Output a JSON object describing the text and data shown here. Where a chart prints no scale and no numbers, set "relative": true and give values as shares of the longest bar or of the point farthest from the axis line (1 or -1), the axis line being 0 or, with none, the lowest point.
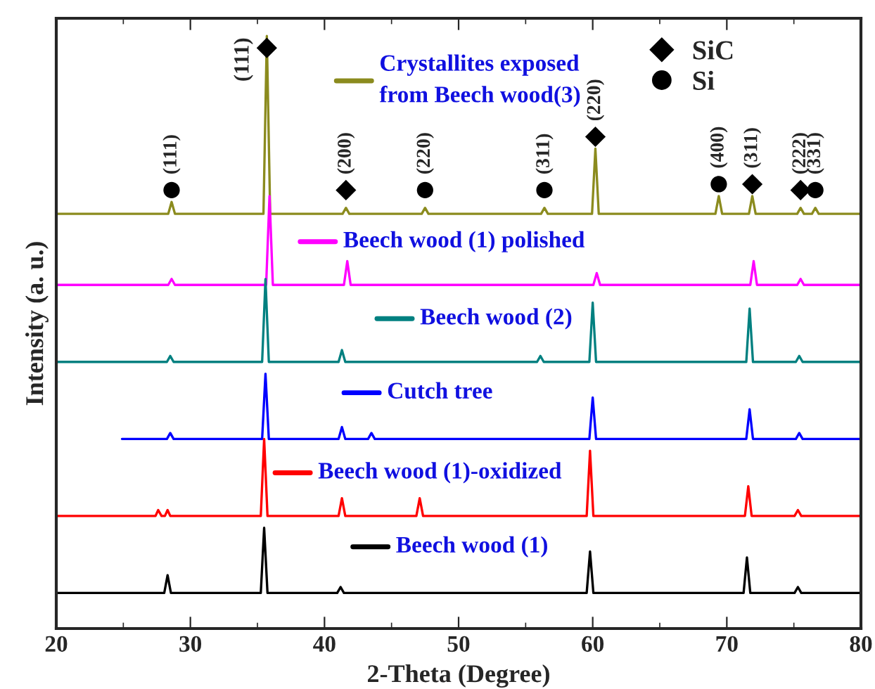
{
  "chart_data": {
    "type": "line",
    "relative": true,
    "xlabel": "2-Theta (Degree)",
    "ylabel": "Intensity (a. u.)",
    "xlim": [
      20,
      80
    ],
    "xticks": [
      20,
      30,
      40,
      50,
      60,
      70,
      80
    ],
    "legend": "top right",
    "grid": false,
    "series": [
      {
        "name": "Crystallites exposed\nfrom Beech wood(3)",
        "color": "#8b8b1e",
        "x": [
          20,
          28.35,
          28.6,
          28.85,
          35.45,
          35.7,
          35.95,
          41.35,
          41.6,
          41.85,
          47.25,
          47.5,
          47.75,
          56.15,
          56.4,
          56.65,
          59.95,
          60.2,
          60.45,
          69.15,
          69.4,
          69.65,
          71.65,
          71.9,
          72.15,
          75.25,
          75.5,
          75.75,
          76.35,
          76.6,
          76.85,
          80
        ],
        "values": [
          0.7,
          0.7,
          0.72,
          0.7,
          0.7,
          1.0,
          0.7,
          0.7,
          0.71,
          0.7,
          0.7,
          0.71,
          0.7,
          0.7,
          0.71,
          0.7,
          0.7,
          0.81,
          0.7,
          0.7,
          0.73,
          0.7,
          0.7,
          0.73,
          0.7,
          0.7,
          0.71,
          0.7,
          0.7,
          0.71,
          0.7,
          0.7
        ]
      },
      {
        "name": "Beech wood (1) polished",
        "color": "#ff00ff",
        "x": [
          20,
          28.35,
          28.6,
          28.85,
          35.65,
          35.9,
          36.15,
          41.45,
          41.7,
          41.95,
          60.05,
          60.3,
          60.55,
          71.75,
          72.0,
          72.25,
          75.25,
          75.5,
          75.75,
          80
        ],
        "values": [
          0.58,
          0.58,
          0.59,
          0.58,
          0.58,
          0.73,
          0.58,
          0.58,
          0.62,
          0.58,
          0.58,
          0.6,
          0.58,
          0.58,
          0.62,
          0.58,
          0.58,
          0.59,
          0.58,
          0.58
        ]
      },
      {
        "name": "Beech wood (2)",
        "color": "#008080",
        "x": [
          20,
          28.25,
          28.5,
          28.75,
          35.35,
          35.6,
          35.85,
          41.05,
          41.3,
          41.55,
          55.85,
          56.1,
          56.35,
          59.75,
          60.0,
          60.25,
          71.45,
          71.7,
          71.95,
          75.15,
          75.4,
          75.65,
          80
        ],
        "values": [
          0.45,
          0.45,
          0.46,
          0.45,
          0.45,
          0.59,
          0.45,
          0.45,
          0.47,
          0.45,
          0.45,
          0.46,
          0.45,
          0.45,
          0.55,
          0.45,
          0.45,
          0.54,
          0.45,
          0.45,
          0.46,
          0.45,
          0.45
        ]
      },
      {
        "name": "Cutch tree",
        "color": "#0000ff",
        "x": [
          24.9,
          28.25,
          28.5,
          28.75,
          35.35,
          35.6,
          35.85,
          41.05,
          41.3,
          41.55,
          43.25,
          43.5,
          43.75,
          59.75,
          60.0,
          60.25,
          71.45,
          71.7,
          71.95,
          75.15,
          75.4,
          75.65,
          80
        ],
        "values": [
          0.32,
          0.32,
          0.33,
          0.32,
          0.32,
          0.43,
          0.32,
          0.32,
          0.34,
          0.32,
          0.32,
          0.33,
          0.32,
          0.32,
          0.39,
          0.32,
          0.32,
          0.37,
          0.32,
          0.32,
          0.33,
          0.32,
          0.32
        ]
      },
      {
        "name": "Beech wood (1)-oxidized",
        "color": "#ff0000",
        "x": [
          20,
          27.4,
          27.6,
          27.85,
          28.1,
          28.3,
          28.5,
          35.25,
          35.5,
          35.75,
          41.05,
          41.3,
          41.55,
          46.85,
          47.1,
          47.35,
          59.55,
          59.8,
          60.05,
          71.35,
          71.6,
          71.85,
          75.05,
          75.3,
          75.55,
          80
        ],
        "values": [
          0.19,
          0.19,
          0.2,
          0.19,
          0.19,
          0.2,
          0.19,
          0.19,
          0.32,
          0.19,
          0.19,
          0.22,
          0.19,
          0.19,
          0.22,
          0.19,
          0.19,
          0.3,
          0.19,
          0.19,
          0.24,
          0.19,
          0.19,
          0.2,
          0.19,
          0.19
        ]
      },
      {
        "name": "Beech wood (1)",
        "color": "#000000",
        "x": [
          20,
          28.05,
          28.3,
          28.55,
          35.25,
          35.5,
          35.75,
          40.95,
          41.2,
          41.45,
          59.55,
          59.8,
          60.05,
          71.25,
          71.5,
          71.75,
          75.05,
          75.3,
          75.55,
          80
        ],
        "values": [
          0.06,
          0.06,
          0.09,
          0.06,
          0.06,
          0.17,
          0.06,
          0.06,
          0.07,
          0.06,
          0.06,
          0.13,
          0.06,
          0.06,
          0.12,
          0.06,
          0.06,
          0.07,
          0.06,
          0.06
        ]
      },
      {
        "name": "SiC",
        "type": "scatter",
        "marker": "diamond",
        "color": "#000000",
        "x": [
          35.7,
          41.6,
          60.2,
          71.9,
          75.5
        ],
        "values": [
          0.98,
          0.74,
          0.83,
          0.75,
          0.74
        ]
      },
      {
        "name": "Si",
        "type": "scatter",
        "marker": "circle",
        "color": "#000000",
        "x": [
          28.6,
          47.5,
          56.4,
          69.4,
          76.6
        ],
        "values": [
          0.74,
          0.74,
          0.74,
          0.75,
          0.74
        ]
      }
    ],
    "annotations": [
      {
        "text": "(111)",
        "x": 28.6,
        "y": 0.74
      },
      {
        "text": "(111)",
        "x": 35.7,
        "y": 0.98
      },
      {
        "text": "(200)",
        "x": 41.6,
        "y": 0.74
      },
      {
        "text": "(220)",
        "x": 47.5,
        "y": 0.74
      },
      {
        "text": "(311)",
        "x": 56.4,
        "y": 0.74
      },
      {
        "text": "(220)",
        "x": 60.2,
        "y": 0.83
      },
      {
        "text": "(400)",
        "x": 69.4,
        "y": 0.75
      },
      {
        "text": "(311)",
        "x": 71.9,
        "y": 0.75
      },
      {
        "text": "(222)",
        "x": 75.5,
        "y": 0.74
      },
      {
        "text": "(331)",
        "x": 76.6,
        "y": 0.74
      }
    ]
  }
}
